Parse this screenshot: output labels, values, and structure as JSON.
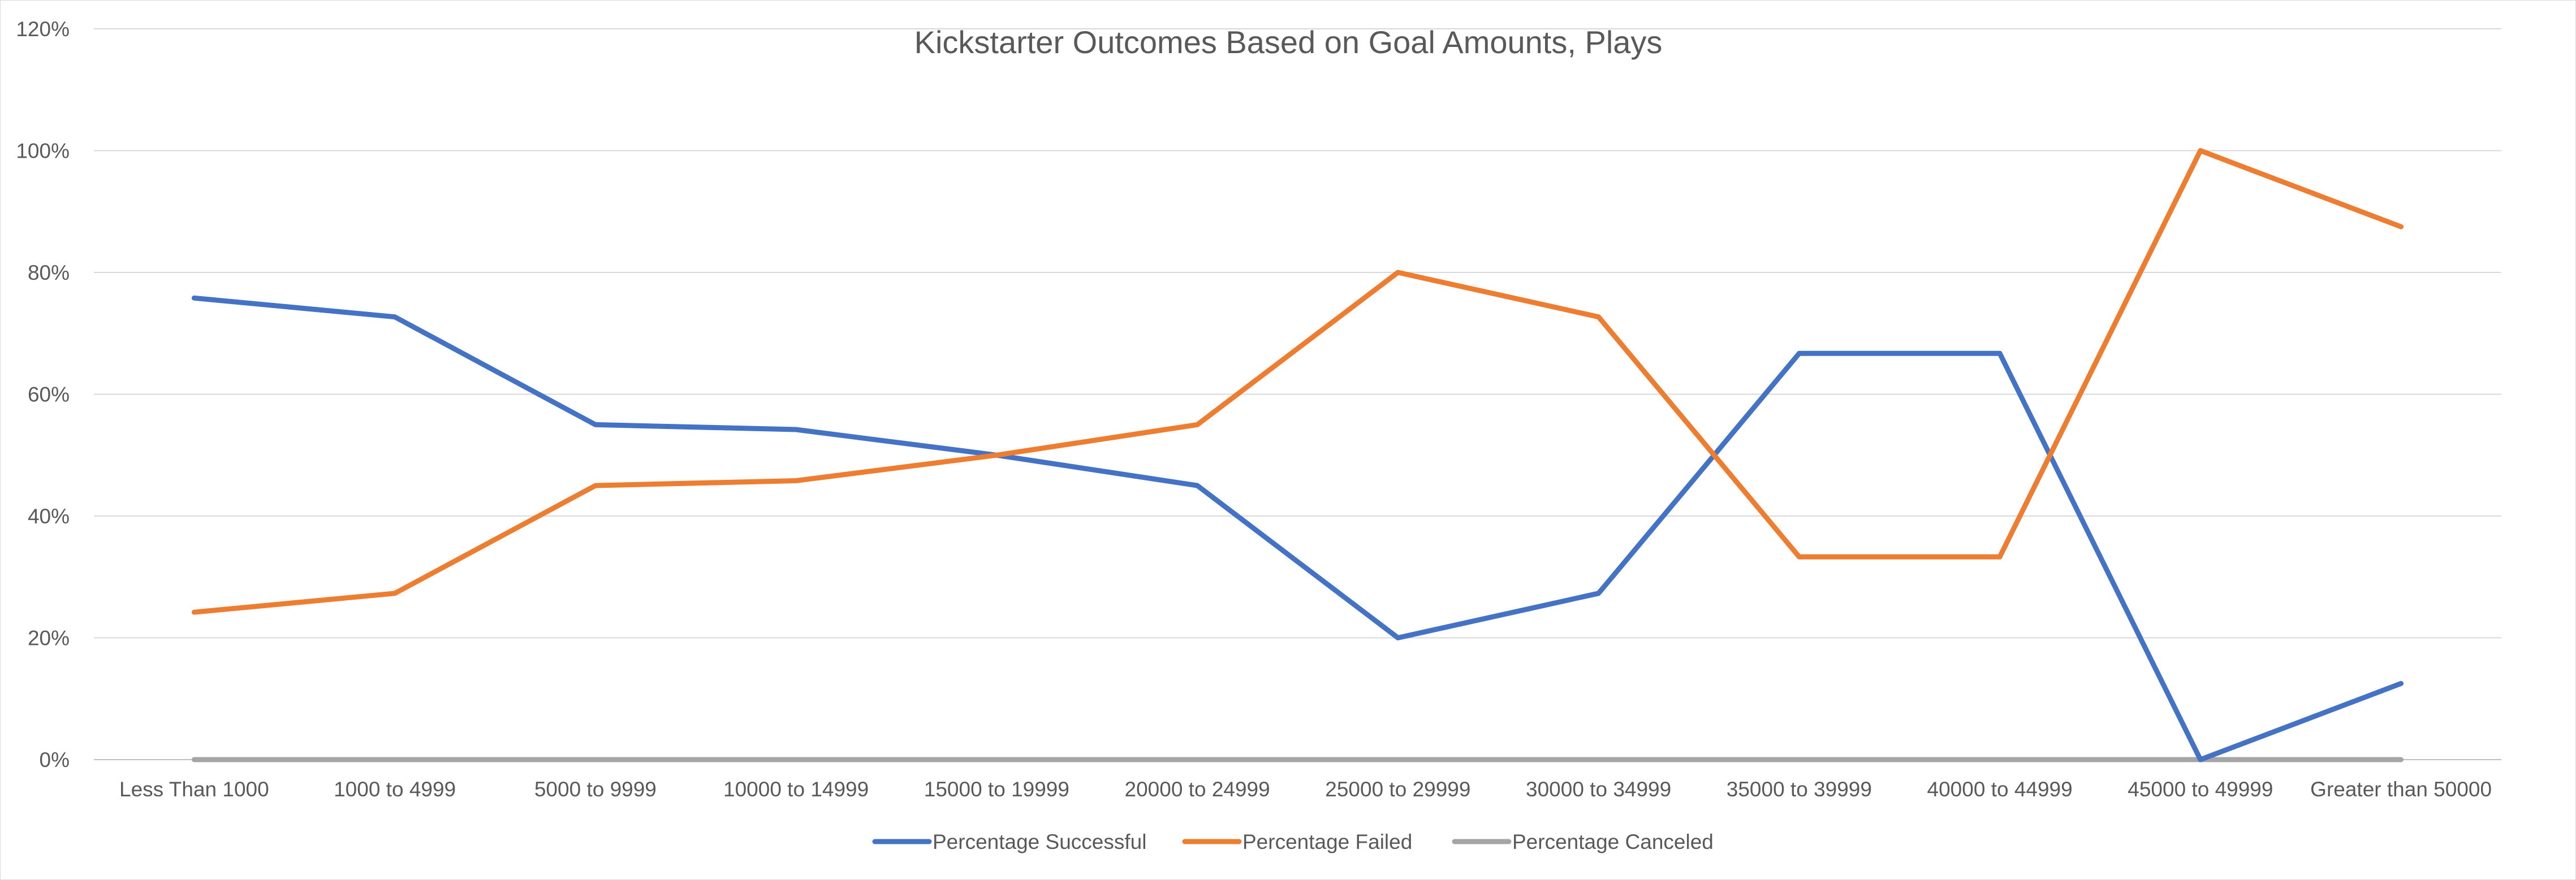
{
  "chart_data": {
    "type": "line",
    "title": "Kickstarter Outcomes Based on Goal Amounts, Plays",
    "xlabel": "",
    "ylabel": "",
    "categories": [
      "Less Than 1000",
      "1000 to 4999",
      "5000 to 9999",
      "10000 to 14999",
      "15000 to 19999",
      "20000 to 24999",
      "25000 to 29999",
      "30000 to 34999",
      "35000 to 39999",
      "40000 to 44999",
      "45000 to 49999",
      "Greater than 50000"
    ],
    "series": [
      {
        "name": "Percentage Successful",
        "color": "#4472c4",
        "values": [
          0.758,
          0.727,
          0.55,
          0.542,
          0.5,
          0.45,
          0.2,
          0.273,
          0.667,
          0.667,
          0.0,
          0.125
        ]
      },
      {
        "name": "Percentage Failed",
        "color": "#ed7d31",
        "values": [
          0.242,
          0.273,
          0.45,
          0.458,
          0.5,
          0.55,
          0.8,
          0.727,
          0.333,
          0.333,
          1.0,
          0.875
        ]
      },
      {
        "name": "Percentage Canceled",
        "color": "#a5a5a5",
        "values": [
          0,
          0,
          0,
          0,
          0,
          0,
          0,
          0,
          0,
          0,
          0,
          0
        ]
      }
    ],
    "ylim": [
      0,
      1.2
    ],
    "yticks": [
      0,
      0.2,
      0.4,
      0.6,
      0.8,
      1.0,
      1.2
    ],
    "ytick_labels": [
      "0%",
      "20%",
      "40%",
      "60%",
      "80%",
      "100%",
      "120%"
    ],
    "grid": true,
    "legend_position": "bottom",
    "gridline_color": "#d9d9d9",
    "axis_line_color": "#bfbfbf"
  }
}
